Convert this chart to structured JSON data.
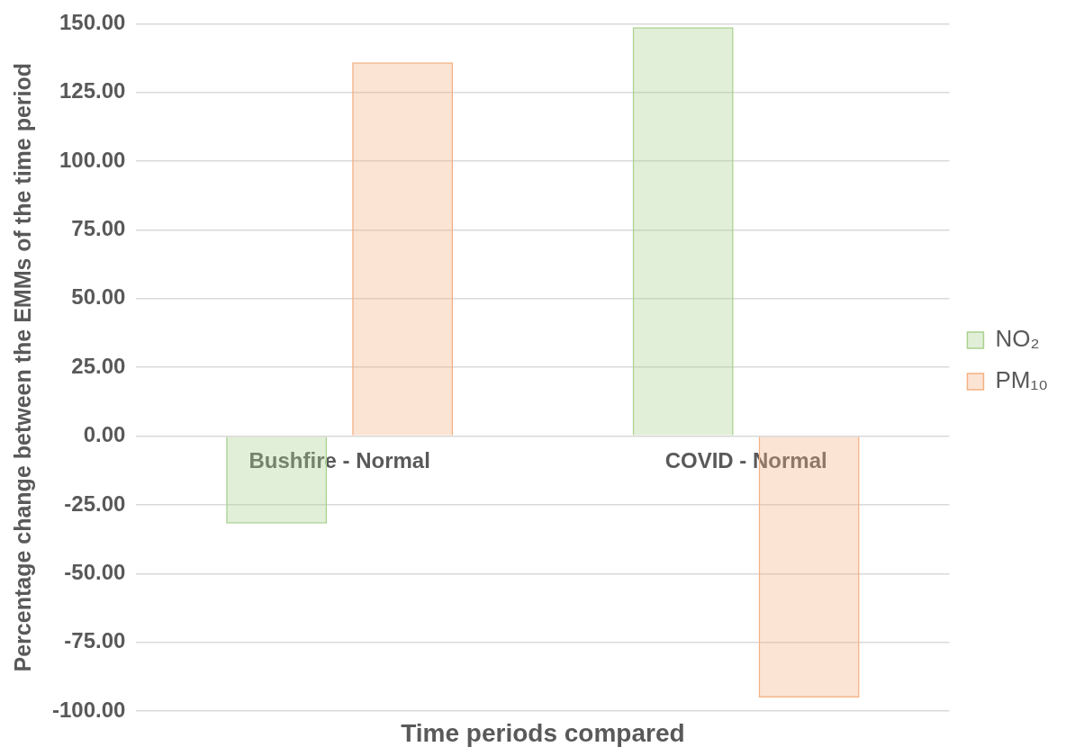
{
  "chart_data": {
    "type": "bar",
    "xlabel": "Time periods compared",
    "ylabel": "Percentage change between the EMMs of the time period",
    "categories": [
      "Bushfire - Normal",
      "COVID - Normal"
    ],
    "series": [
      {
        "name": "NO₂",
        "color": "#a9d18e",
        "values": [
          -31.8,
          148.7
        ]
      },
      {
        "name": "PM₁₀",
        "color": "#f4b183",
        "values": [
          136.0,
          -95.1
        ]
      }
    ],
    "ylim": [
      -100,
      150
    ],
    "yticks": [
      {
        "value": -100,
        "label": "-100.00"
      },
      {
        "value": -75,
        "label": "-75.00"
      },
      {
        "value": -50,
        "label": "-50.00"
      },
      {
        "value": -25,
        "label": "-25.00"
      },
      {
        "value": 0,
        "label": "0.00"
      },
      {
        "value": 25,
        "label": "25.00"
      },
      {
        "value": 50,
        "label": "50.00"
      },
      {
        "value": 75,
        "label": "75.00"
      },
      {
        "value": 100,
        "label": "100.00"
      },
      {
        "value": 125,
        "label": "125.00"
      },
      {
        "value": 150,
        "label": "150.00"
      }
    ],
    "grid": "y",
    "legend": "right"
  }
}
